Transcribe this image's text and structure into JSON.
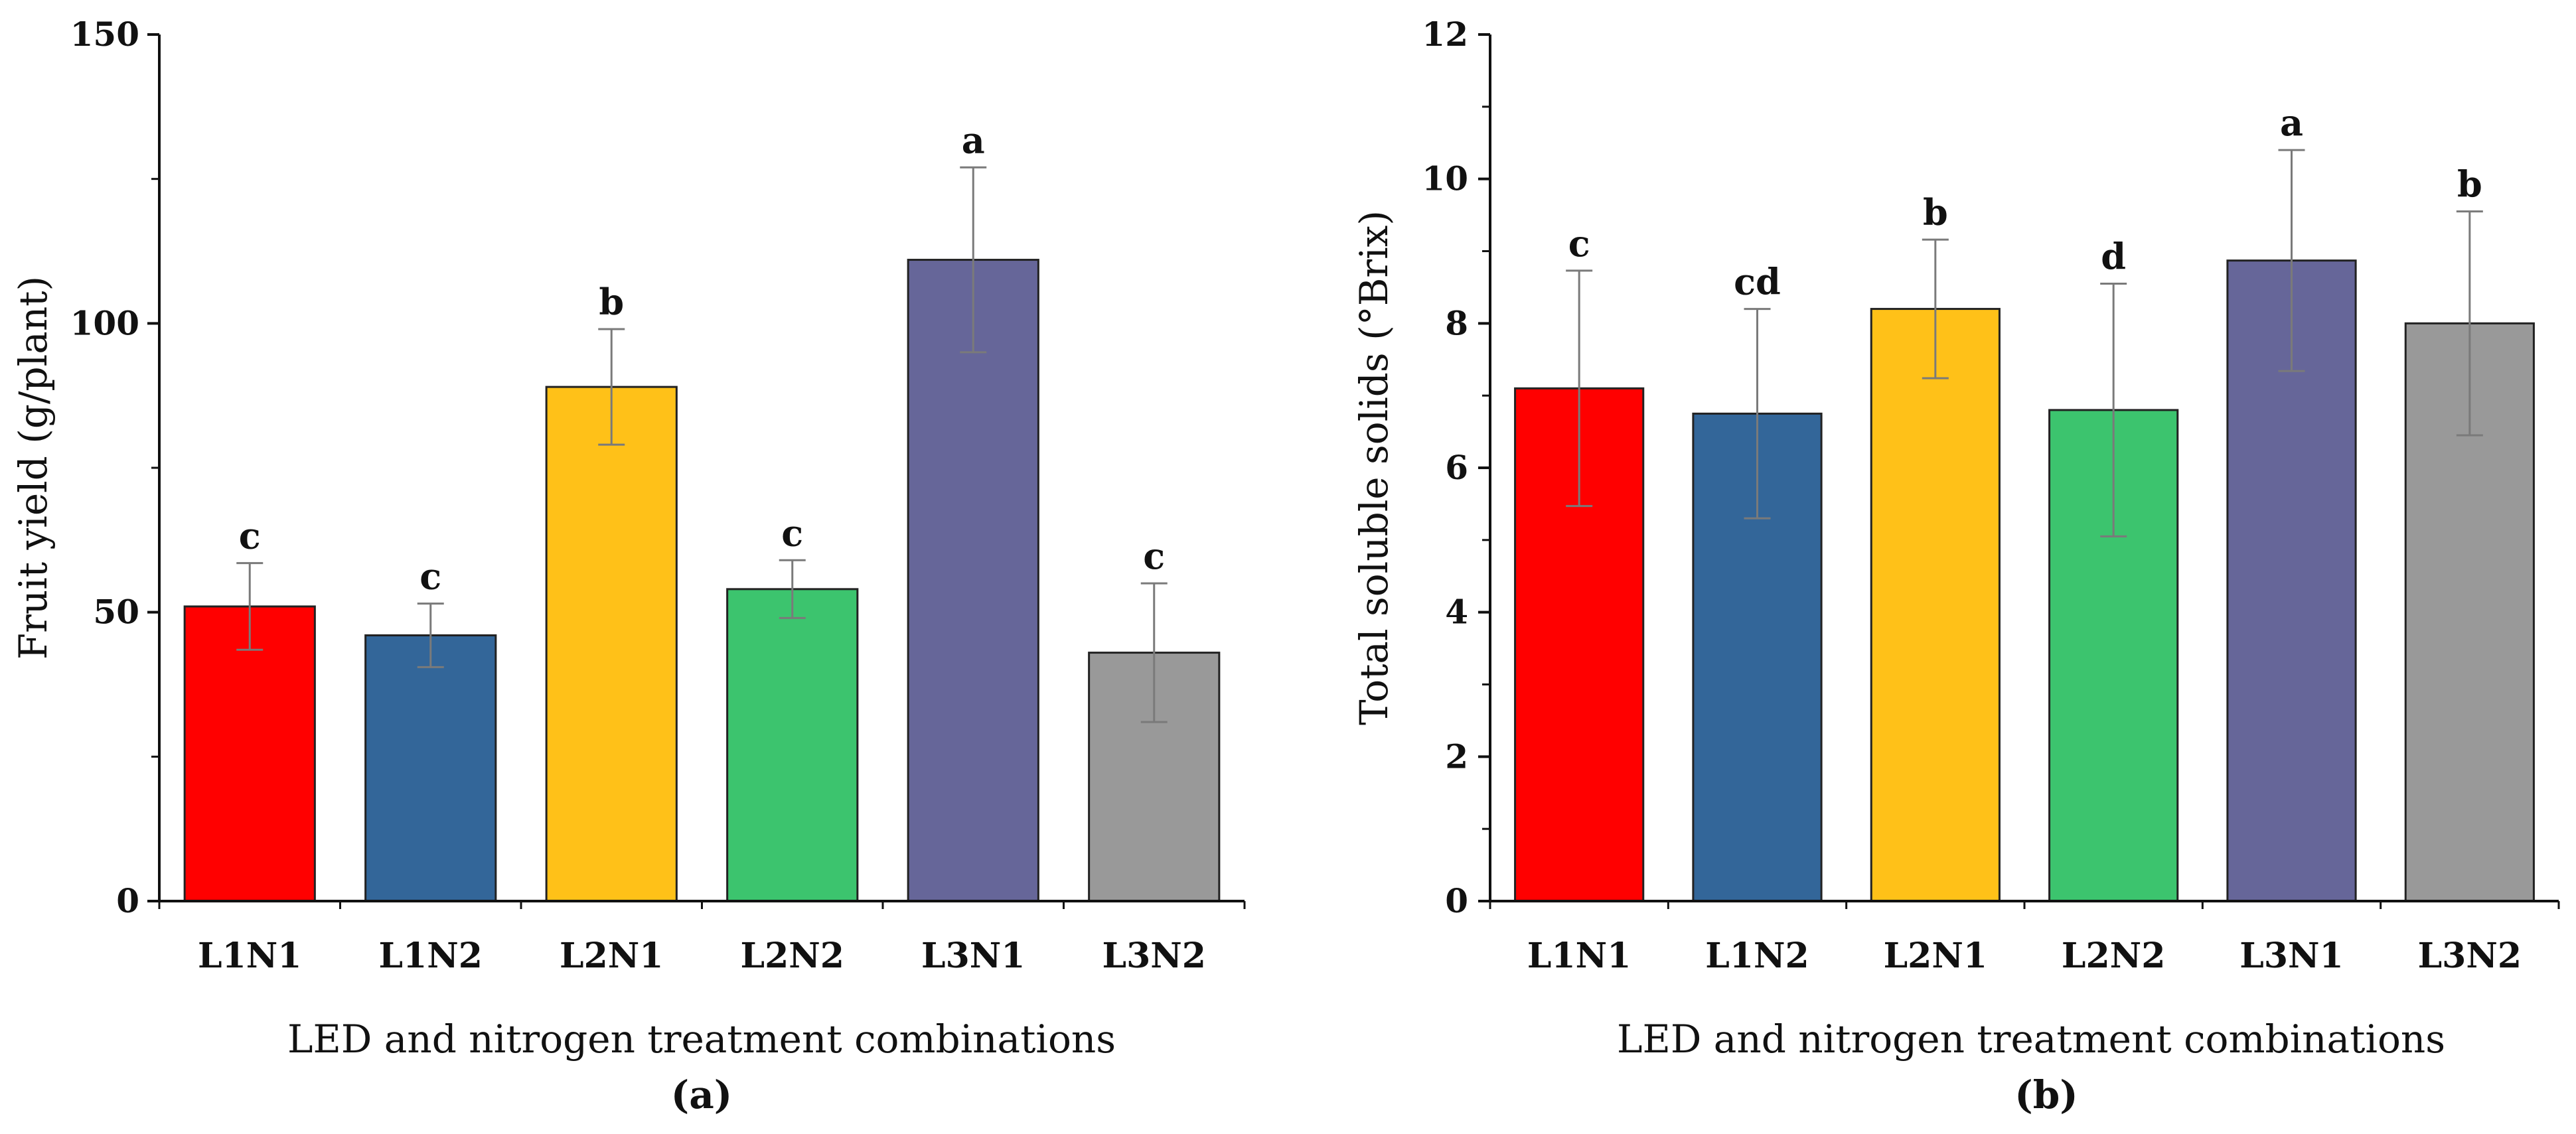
{
  "colors": {
    "L1N1": "#ff0000",
    "L1N2": "#336699",
    "L2N1": "#ffc118",
    "L2N2": "#3cc46e",
    "L3N1": "#666699",
    "L3N2": "#999999",
    "axis": "#111111",
    "errorbar": "#7a7a7a"
  },
  "chart_data": [
    {
      "type": "bar",
      "panel_label": "(a)",
      "categories": [
        "L1N1",
        "L1N2",
        "L2N1",
        "L2N2",
        "L3N1",
        "L3N2"
      ],
      "values": [
        51,
        46,
        89,
        54,
        111,
        43
      ],
      "error": [
        7.5,
        5.5,
        10,
        5,
        16,
        12
      ],
      "significance": [
        "c",
        "c",
        "b",
        "c",
        "a",
        "c"
      ],
      "xlabel": "LED and nitrogen treatment combinations",
      "ylabel": "Fruit yield (g/plant)",
      "ylim": [
        0,
        150
      ],
      "yticks": [
        0,
        50,
        100,
        150
      ],
      "yminor": 25,
      "grid": false
    },
    {
      "type": "bar",
      "panel_label": "(b)",
      "categories": [
        "L1N1",
        "L1N2",
        "L2N1",
        "L2N2",
        "L3N1",
        "L3N2"
      ],
      "values": [
        7.1,
        6.75,
        8.2,
        6.8,
        8.87,
        8.0
      ],
      "error": [
        1.63,
        1.45,
        0.96,
        1.75,
        1.53,
        1.55
      ],
      "significance": [
        "c",
        "cd",
        "b",
        "d",
        "a",
        "b"
      ],
      "xlabel": "LED and nitrogen treatment combinations",
      "ylabel": "Total soluble solids (°Brix)",
      "ylim": [
        0,
        12
      ],
      "yticks": [
        0,
        2,
        4,
        6,
        8,
        10,
        12
      ],
      "yminor": 1,
      "grid": false
    }
  ]
}
